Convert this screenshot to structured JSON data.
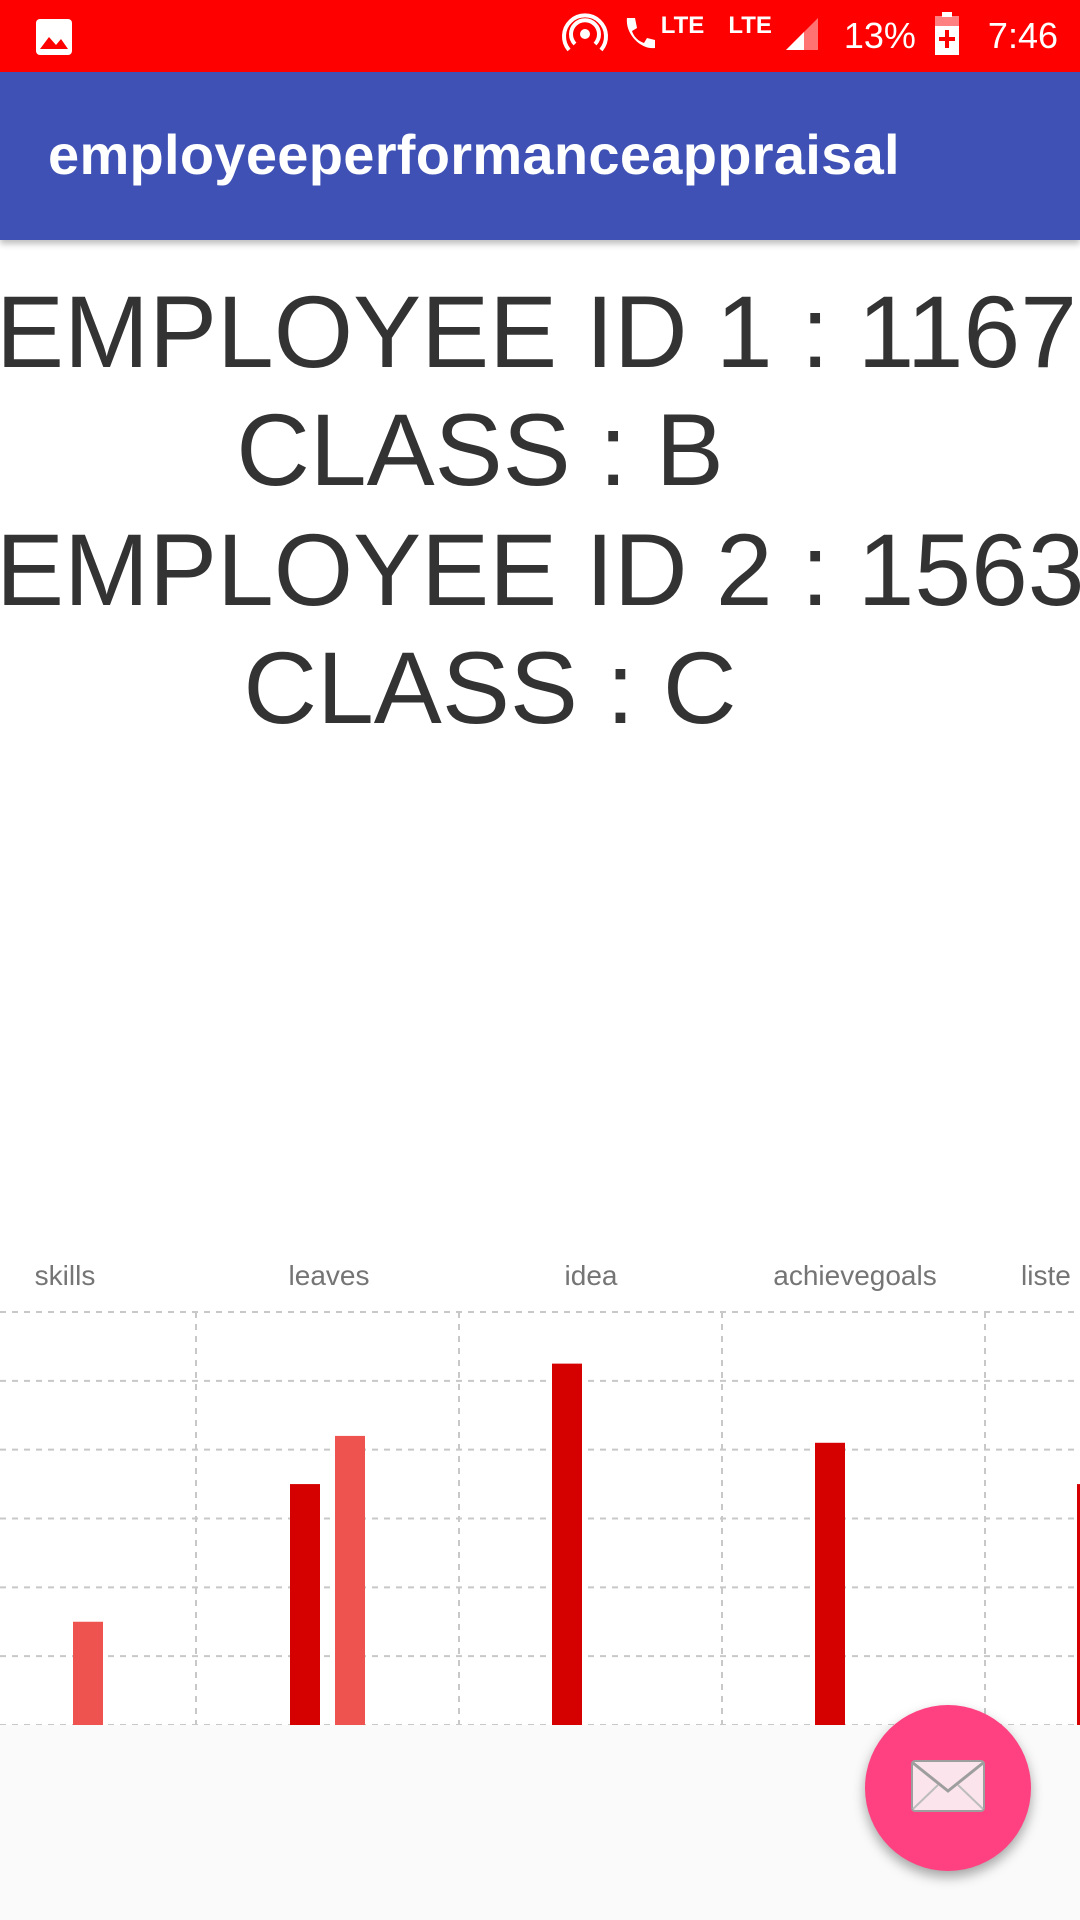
{
  "status_bar": {
    "lte_1": "LTE",
    "lte_2": "LTE",
    "battery": "13%",
    "time": "7:46"
  },
  "app_bar": {
    "title": "employeeperformanceappraisal"
  },
  "results": {
    "line_1": "EMPLOYEE ID 1 : 1167",
    "line_2": "CLASS : B",
    "line_3": "EMPLOYEE ID 2 : 1563",
    "line_4": "CLASS : C"
  },
  "chart_data": {
    "type": "bar",
    "categories": [
      "skills",
      "leaves",
      "idea",
      "achievegoals",
      "liste"
    ],
    "series": [
      {
        "values": [
          0,
          3.5,
          5.25,
          4.1,
          3.5
        ],
        "color": "#d50000"
      },
      {
        "values": [
          1.5,
          4.2,
          0,
          0,
          0
        ],
        "color": "#ef5350"
      }
    ],
    "ylim": [
      0,
      6
    ],
    "grid": true,
    "xlabel": "",
    "ylabel": ""
  },
  "fab": {
    "icon": "mail-icon",
    "color": "#ff4081"
  },
  "colors": {
    "status_bar": "#ff0000",
    "app_bar": "#3f51b5",
    "text": "#333333"
  }
}
